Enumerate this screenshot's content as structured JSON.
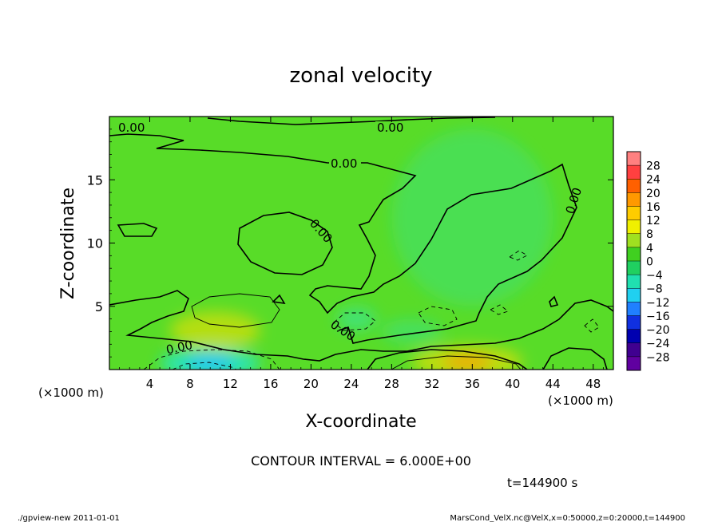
{
  "chart_data": {
    "type": "heatmap",
    "title": "zonal velocity",
    "xlabel": "X-coordinate",
    "ylabel": "Z-coordinate",
    "x_unit": "(×1000 m)",
    "x_unit_right": "(×1000 m)",
    "xlim": [
      0,
      50
    ],
    "ylim": [
      0,
      20
    ],
    "x_ticks": [
      "4",
      "8",
      "12",
      "16",
      "20",
      "24",
      "28",
      "32",
      "36",
      "40",
      "44",
      "48"
    ],
    "y_ticks": [
      "5",
      "10",
      "15"
    ],
    "contour_labels": [
      "0.00",
      "0.00",
      "0.00",
      "0.00",
      "0.00",
      "0.00",
      "0.00"
    ],
    "contour_interval_text": "CONTOUR INTERVAL = 6.000E+00",
    "colorbar": {
      "labels": [
        "28",
        "24",
        "20",
        "16",
        "12",
        "8",
        "4",
        "0",
        "−4",
        "−8",
        "−12",
        "−16",
        "−20",
        "−24",
        "−28"
      ],
      "colors": [
        "#ff8080",
        "#ff4040",
        "#ff6000",
        "#ff9900",
        "#ffcc00",
        "#f0f000",
        "#a0e020",
        "#40d020",
        "#20d060",
        "#20e0b0",
        "#20d0f0",
        "#2080ff",
        "#1030e0",
        "#0000b0",
        "#400090",
        "#6000a0"
      ]
    },
    "blobs": [
      {
        "kind": "positive",
        "cx": 10.5,
        "cz": 3.1,
        "rx": 4.5,
        "rz": 1.5,
        "strength": 0.55
      },
      {
        "kind": "positive",
        "cx": 35.5,
        "cz": 0.6,
        "rx": 5.5,
        "rz": 1.3,
        "strength": 0.6
      },
      {
        "kind": "negative",
        "cx": 10,
        "cz": 0.5,
        "rx": 5,
        "rz": 1.2,
        "strength": 0.8
      },
      {
        "kind": "negative",
        "cx": 24.5,
        "cz": 4,
        "rx": 2,
        "rz": 0.9,
        "strength": 0.45
      },
      {
        "kind": "negative",
        "cx": 36,
        "cz": 12,
        "rx": 8,
        "rz": 7,
        "strength": 0.25
      },
      {
        "kind": "negative",
        "cx": 30,
        "cz": 3,
        "rx": 3,
        "rz": 1,
        "strength": 0.3
      }
    ]
  },
  "footer": {
    "time": "t=144900 s",
    "left_note": "./gpview-new   2011-01-01",
    "right_note": "MarsCond_VelX.nc@VelX,x=0:50000,z=0:20000,t=144900"
  }
}
